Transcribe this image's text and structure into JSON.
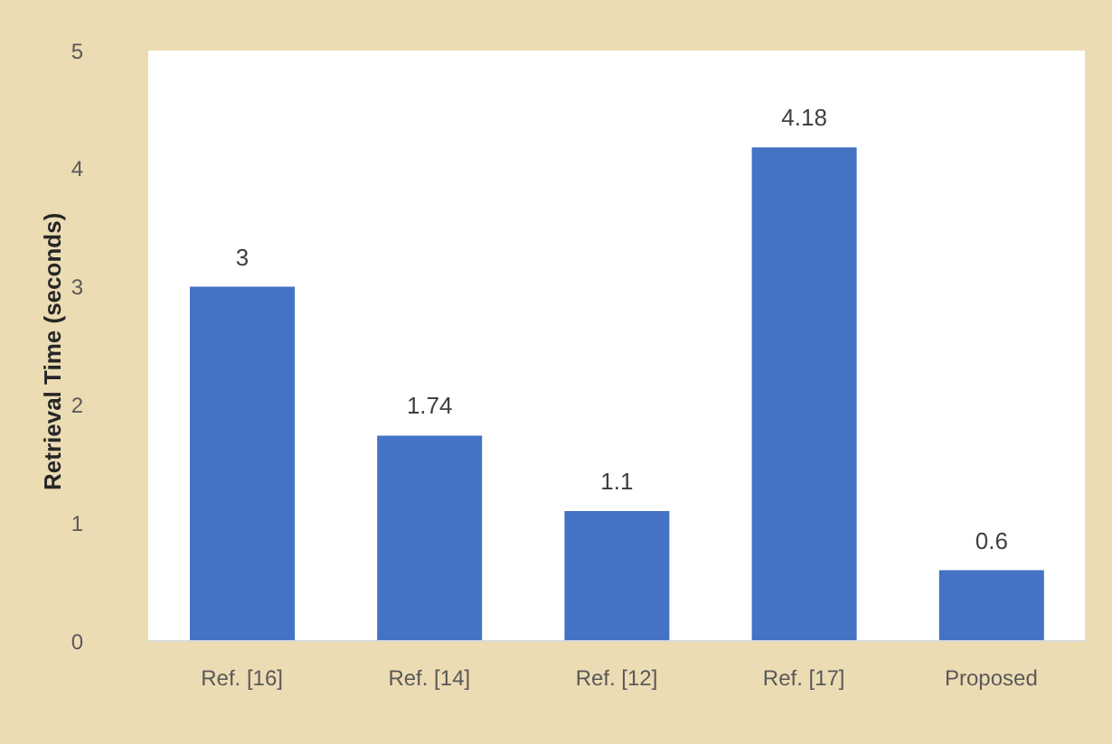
{
  "chart_data": {
    "type": "bar",
    "ylabel": "Retrieval Time (seconds)",
    "categories": [
      "Ref. [16]",
      "Ref. [14]",
      "Ref. [12]",
      "Ref. [17]",
      "Proposed"
    ],
    "values": [
      3,
      1.74,
      1.1,
      4.18,
      0.6
    ],
    "color": "#4472c4",
    "ylim": [
      0,
      5
    ],
    "yticks": [
      0,
      1,
      2,
      3,
      4,
      5
    ],
    "data_labels": true,
    "legend": false,
    "grid": false
  }
}
